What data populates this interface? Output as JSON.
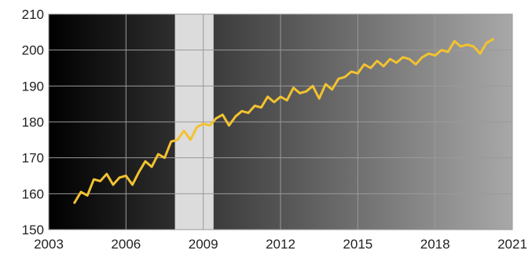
{
  "chart_data": {
    "type": "line",
    "title": "",
    "xlabel": "",
    "ylabel": "",
    "xlim": [
      2003,
      2021
    ],
    "ylim": [
      150,
      210
    ],
    "x_ticks": [
      2003,
      2006,
      2009,
      2012,
      2015,
      2018,
      2021
    ],
    "x_tick_labels": [
      "2003",
      "2006",
      "2009",
      "2012",
      "2015",
      "2018",
      "2021"
    ],
    "y_ticks": [
      150,
      160,
      170,
      180,
      190,
      200,
      210
    ],
    "y_tick_labels": [
      "150",
      "160",
      "170",
      "180",
      "190",
      "200",
      "210"
    ],
    "grid": true,
    "legend": "none",
    "shaded_region": {
      "x_start": 2007.9,
      "x_end": 2009.4,
      "color": "#dcdcdc"
    },
    "colors": {
      "line": "#f2c230",
      "gradient_start": "#000000",
      "gradient_end": "#a8a8a8",
      "grid": "#9a9a9a"
    },
    "series": [
      {
        "x": [
          2004.0,
          2004.25,
          2004.5,
          2004.75,
          2005.0,
          2005.25,
          2005.5,
          2005.75,
          2006.0,
          2006.25,
          2006.5,
          2006.75,
          2007.0,
          2007.25,
          2007.5,
          2007.75,
          2008.0,
          2008.25,
          2008.5,
          2008.75,
          2009.0,
          2009.25,
          2009.5,
          2009.75,
          2010.0,
          2010.25,
          2010.5,
          2010.75,
          2011.0,
          2011.25,
          2011.5,
          2011.75,
          2012.0,
          2012.25,
          2012.5,
          2012.75,
          2013.0,
          2013.25,
          2013.5,
          2013.75,
          2014.0,
          2014.25,
          2014.5,
          2014.75,
          2015.0,
          2015.25,
          2015.5,
          2015.75,
          2016.0,
          2016.25,
          2016.5,
          2016.75,
          2017.0,
          2017.25,
          2017.5,
          2017.75,
          2018.0,
          2018.25,
          2018.5,
          2018.75,
          2019.0,
          2019.25,
          2019.5,
          2019.75,
          2020.0,
          2020.25
        ],
        "values": [
          157.5,
          160.5,
          159.5,
          164.0,
          163.5,
          165.5,
          162.5,
          164.5,
          165.0,
          162.5,
          166.0,
          169.0,
          167.5,
          171.0,
          170.0,
          174.5,
          175.0,
          177.5,
          175.0,
          178.5,
          179.5,
          179.0,
          181.0,
          182.0,
          179.0,
          181.5,
          183.0,
          182.5,
          184.5,
          184.0,
          187.0,
          185.5,
          187.0,
          186.0,
          189.5,
          188.0,
          188.5,
          190.0,
          186.5,
          190.5,
          189.0,
          192.0,
          192.5,
          194.0,
          193.5,
          196.0,
          195.0,
          197.0,
          195.5,
          197.5,
          196.5,
          198.0,
          197.5,
          196.0,
          198.0,
          199.0,
          198.5,
          200.0,
          199.5,
          202.5,
          201.0,
          201.5,
          201.0,
          199.0,
          202.0,
          203.0
        ]
      }
    ]
  }
}
